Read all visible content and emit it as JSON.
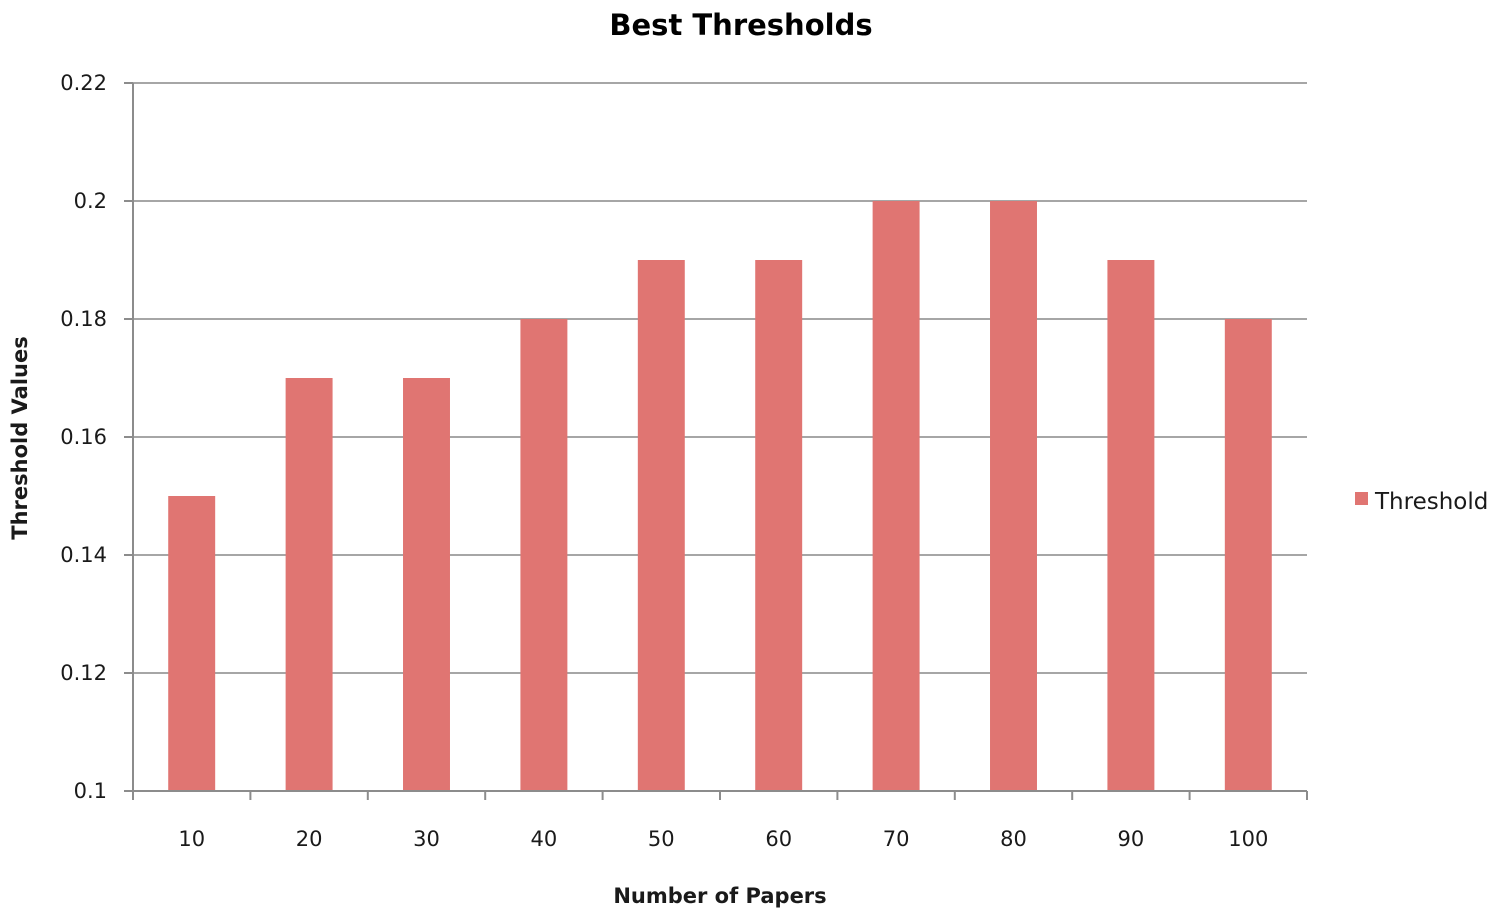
{
  "chart_data": {
    "type": "bar",
    "title": "Best Thresholds",
    "xlabel": "Number of Papers",
    "ylabel": "Threshold Values",
    "categories": [
      "10",
      "20",
      "30",
      "40",
      "50",
      "60",
      "70",
      "80",
      "90",
      "100"
    ],
    "series": [
      {
        "name": "Threshold",
        "color": "#e07572",
        "values": [
          0.15,
          0.17,
          0.17,
          0.18,
          0.19,
          0.19,
          0.2,
          0.2,
          0.19,
          0.18
        ]
      }
    ],
    "ylim": [
      0.1,
      0.22
    ],
    "yticks": [
      "0.1",
      "0.12",
      "0.14",
      "0.16",
      "0.18",
      "0.2",
      "0.22"
    ],
    "grid": true,
    "legend_position": "right"
  }
}
